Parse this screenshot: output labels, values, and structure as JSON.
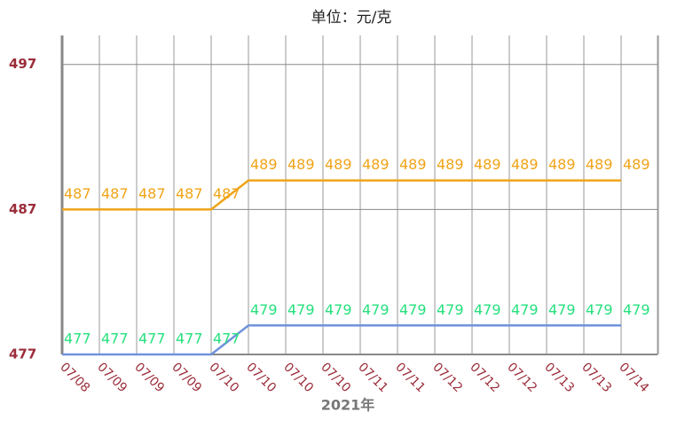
{
  "chart_data": {
    "type": "line",
    "title": "单位：元/克",
    "x_label": "2021年",
    "categories": [
      "07/08",
      "07/09",
      "07/09",
      "07/09",
      "07/10",
      "07/10",
      "07/10",
      "07/10",
      "07/11",
      "07/11",
      "07/12",
      "07/12",
      "07/12",
      "07/13",
      "07/13",
      "07/14"
    ],
    "series": [
      {
        "color": "#f0a418",
        "label_color": "#f0a418",
        "values": [
          487,
          487,
          487,
          487,
          487,
          489,
          489,
          489,
          489,
          489,
          489,
          489,
          489,
          489,
          489,
          489
        ]
      },
      {
        "color": "#6f93dc",
        "label_color": "#26e07e",
        "values": [
          477,
          477,
          477,
          477,
          477,
          479,
          479,
          479,
          479,
          479,
          479,
          479,
          479,
          479,
          479,
          479
        ]
      }
    ],
    "ylim": [
      477,
      499
    ],
    "yticks": [
      477,
      487,
      497
    ],
    "grid": true
  }
}
